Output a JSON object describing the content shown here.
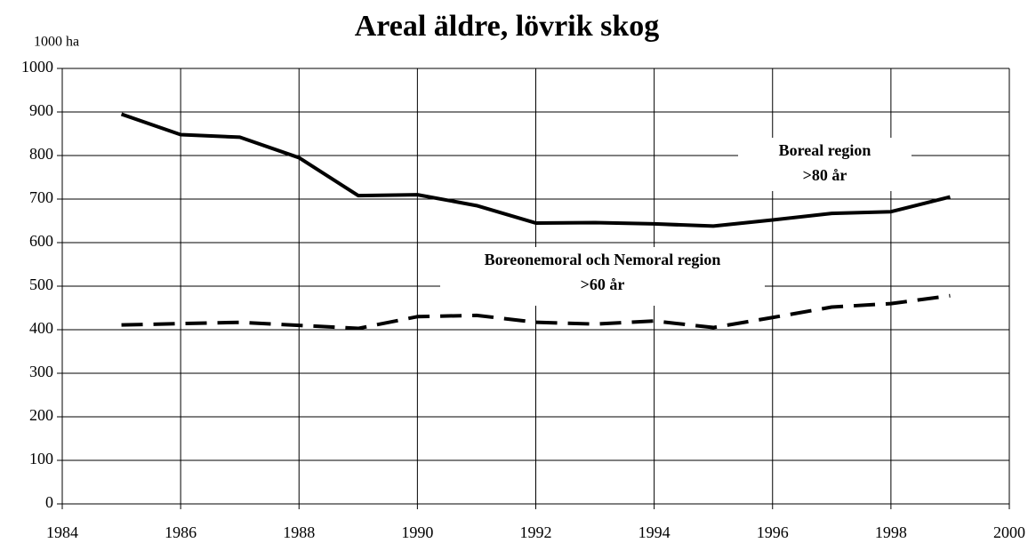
{
  "chart_data": {
    "type": "line",
    "title": "Areal äldre, lövrik skog",
    "y_label": "1000 ha",
    "x": [
      1985,
      1986,
      1987,
      1988,
      1989,
      1990,
      1991,
      1992,
      1993,
      1994,
      1995,
      1996,
      1997,
      1998,
      1999
    ],
    "series": [
      {
        "name": "Boreal region",
        "age": ">80 år",
        "color": "#000000",
        "style": "solid",
        "values": [
          895,
          848,
          842,
          795,
          708,
          710,
          685,
          645,
          646,
          643,
          638,
          652,
          667,
          671,
          705
        ]
      },
      {
        "name": "Boreonemoral och Nemoral region",
        "age": ">60 år",
        "color": "#000000",
        "style": "dashed",
        "values": [
          411,
          414,
          417,
          410,
          403,
          430,
          433,
          417,
          413,
          420,
          405,
          428,
          452,
          460,
          478
        ]
      }
    ],
    "xlim": [
      1984,
      2000
    ],
    "xticks": [
      1984,
      1986,
      1988,
      1990,
      1992,
      1994,
      1996,
      1998,
      2000
    ],
    "ylim": [
      0,
      1000
    ],
    "yticks": [
      0,
      100,
      200,
      300,
      400,
      500,
      600,
      700,
      800,
      900,
      1000
    ],
    "grid": true
  }
}
